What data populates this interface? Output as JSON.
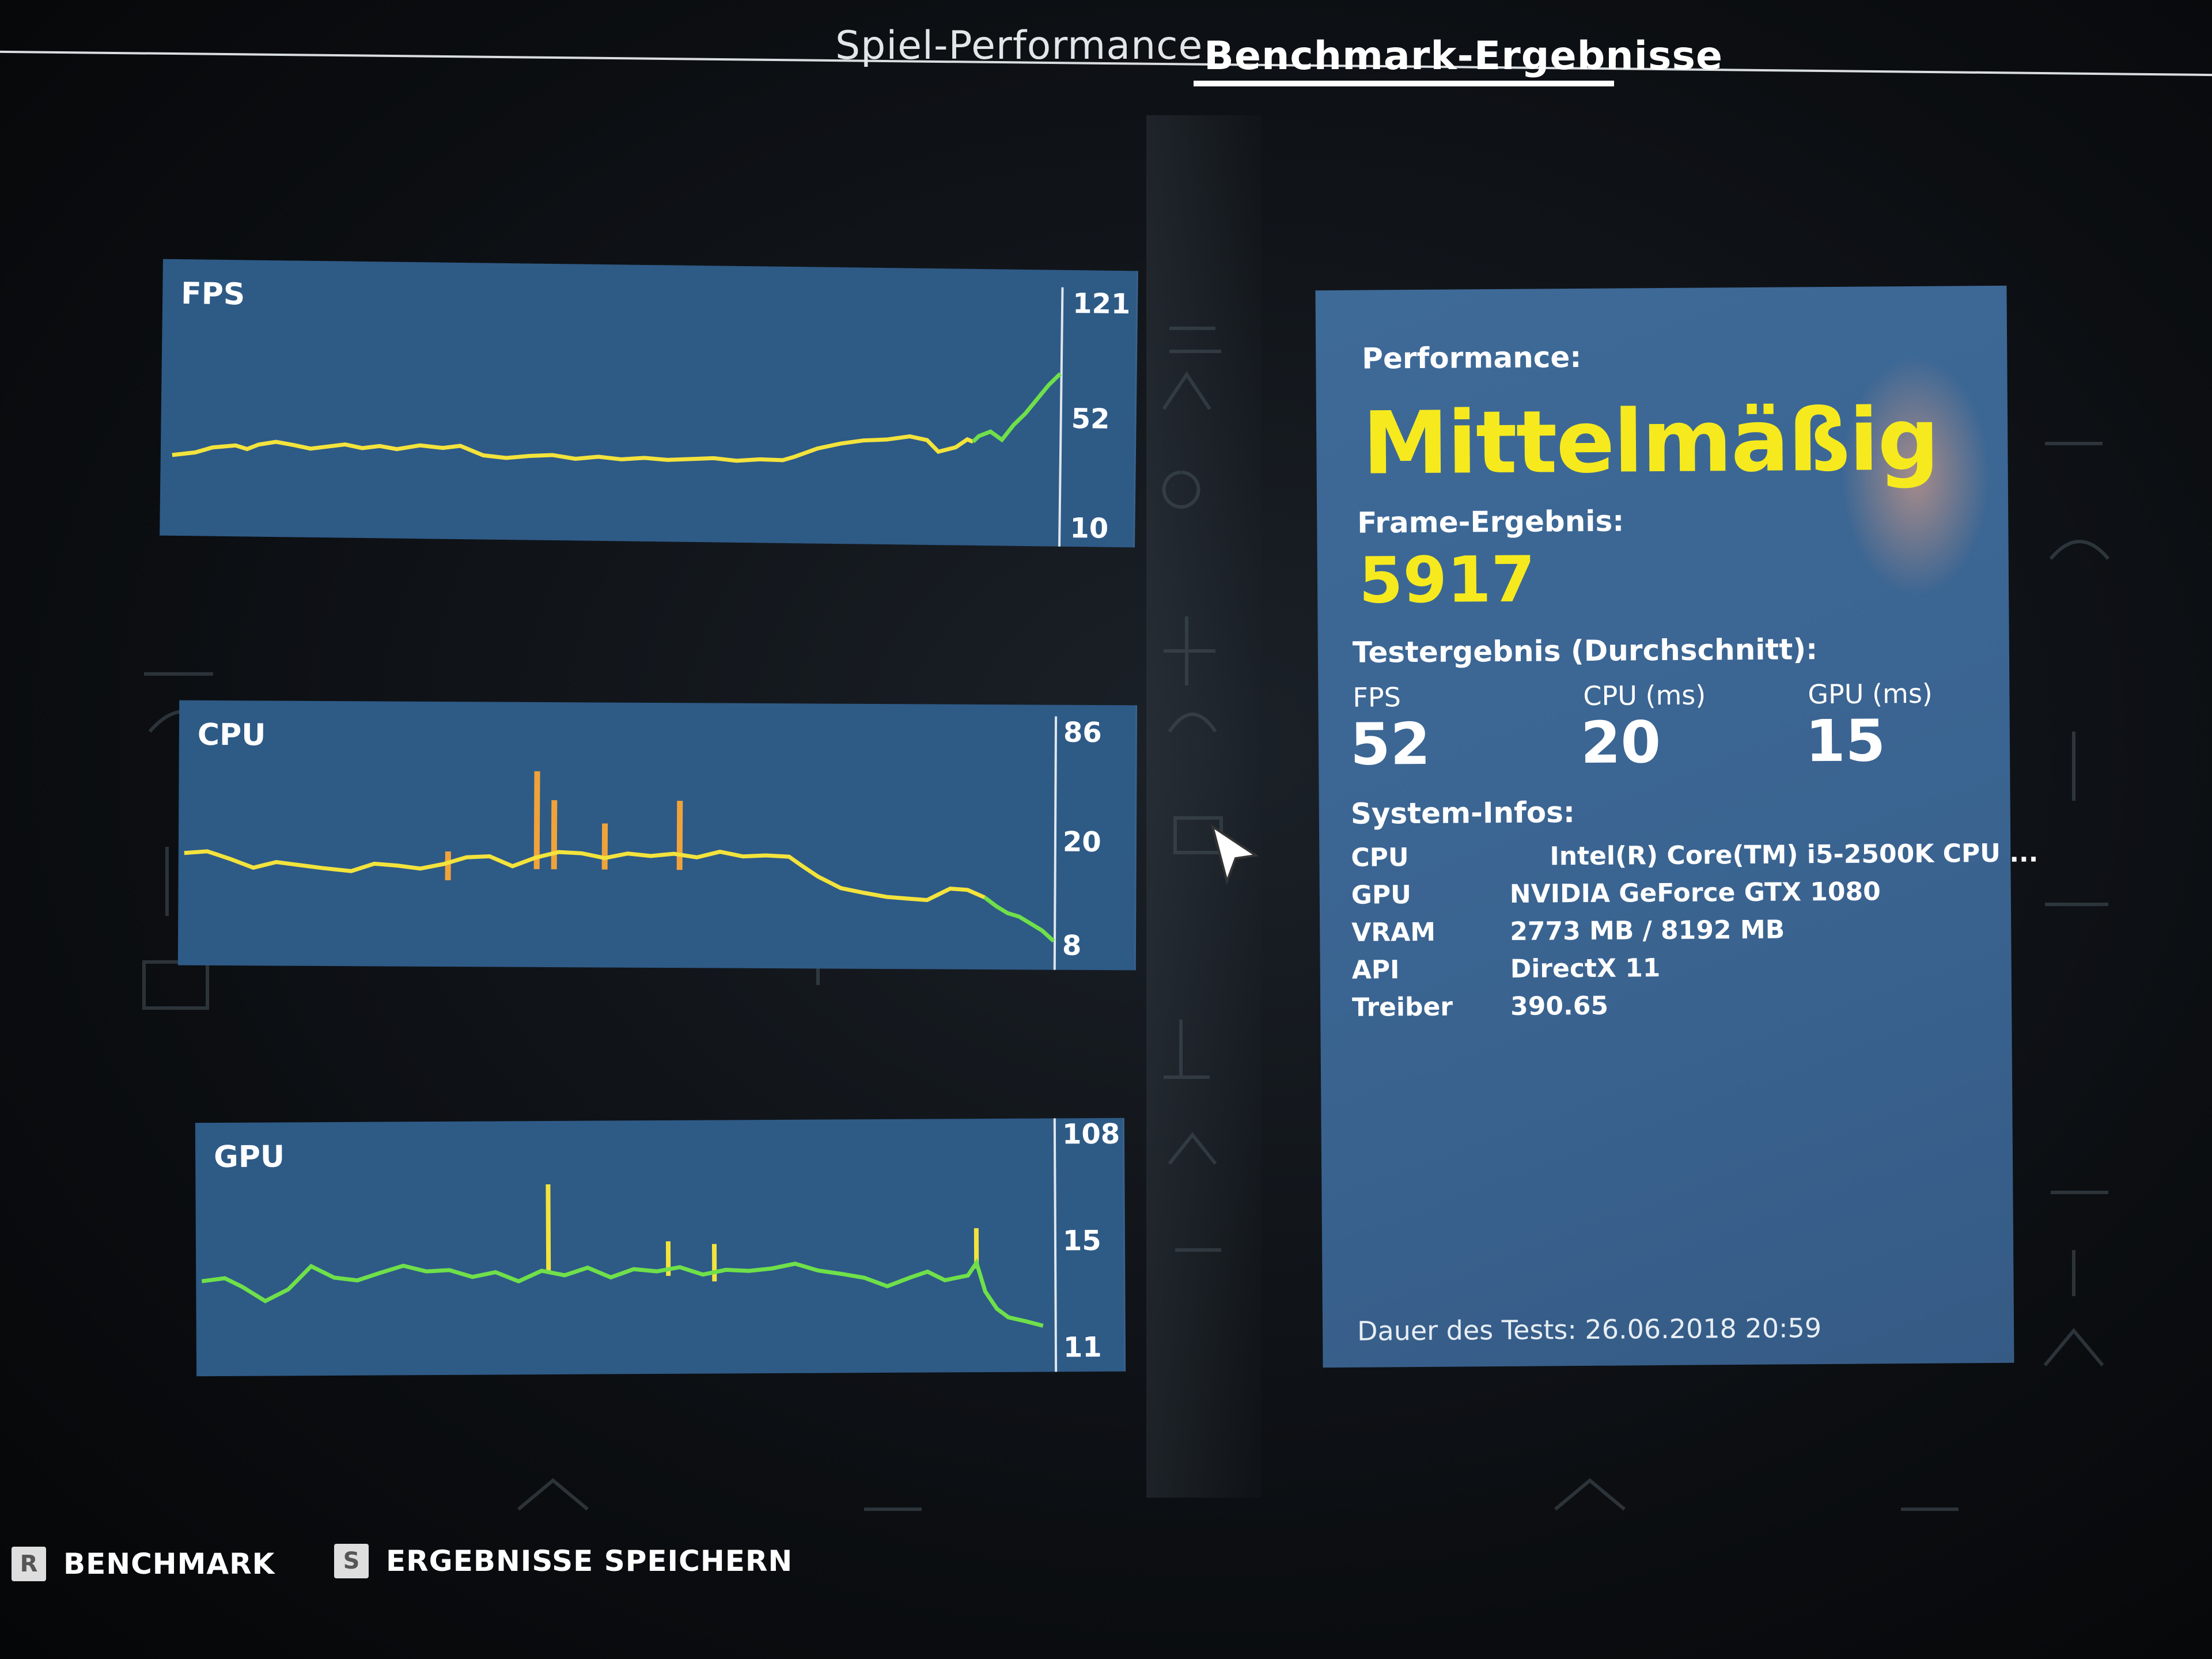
{
  "tabs": {
    "inactive_label": "Spiel-Performance",
    "active_label": "Benchmark-Ergebnisse"
  },
  "charts": {
    "fps": {
      "title": "FPS",
      "ticks": [
        "121",
        "52",
        "10"
      ],
      "color_normal": "#f3e33c",
      "color_good": "#6fe04a"
    },
    "cpu": {
      "title": "CPU",
      "ticks": [
        "86",
        "20",
        "8"
      ]
    },
    "gpu": {
      "title": "GPU",
      "ticks": [
        "108",
        "15",
        "11"
      ]
    }
  },
  "results": {
    "performance_label": "Performance:",
    "rating": "Mittelmäßig",
    "frame_label": "Frame-Ergebnis:",
    "frame_score": "5917",
    "avg_label": "Testergebnis (Durchschnitt):",
    "stats": [
      {
        "label": "FPS",
        "value": "52"
      },
      {
        "label": "CPU (ms)",
        "value": "20"
      },
      {
        "label": "GPU (ms)",
        "value": "15"
      }
    ],
    "sysinfo_label": "System-Infos:",
    "sysinfo": [
      {
        "key": "CPU",
        "value": "Intel(R) Core(TM) i5-2500K CPU ..."
      },
      {
        "key": "GPU",
        "value": "NVIDIA GeForce GTX 1080"
      },
      {
        "key": "VRAM",
        "value": "2773 MB / 8192 MB"
      },
      {
        "key": "API",
        "value": "DirectX 11"
      },
      {
        "key": "Treiber",
        "value": "390.65"
      }
    ],
    "duration": "Dauer des Tests: 26.06.2018 20:59"
  },
  "footer": {
    "benchmark_key": "R",
    "benchmark_label": "BENCHMARK",
    "save_key": "S",
    "save_label": "ERGEBNISSE SPEICHERN"
  },
  "icons": {
    "cursor": "mouse-pointer-icon"
  }
}
